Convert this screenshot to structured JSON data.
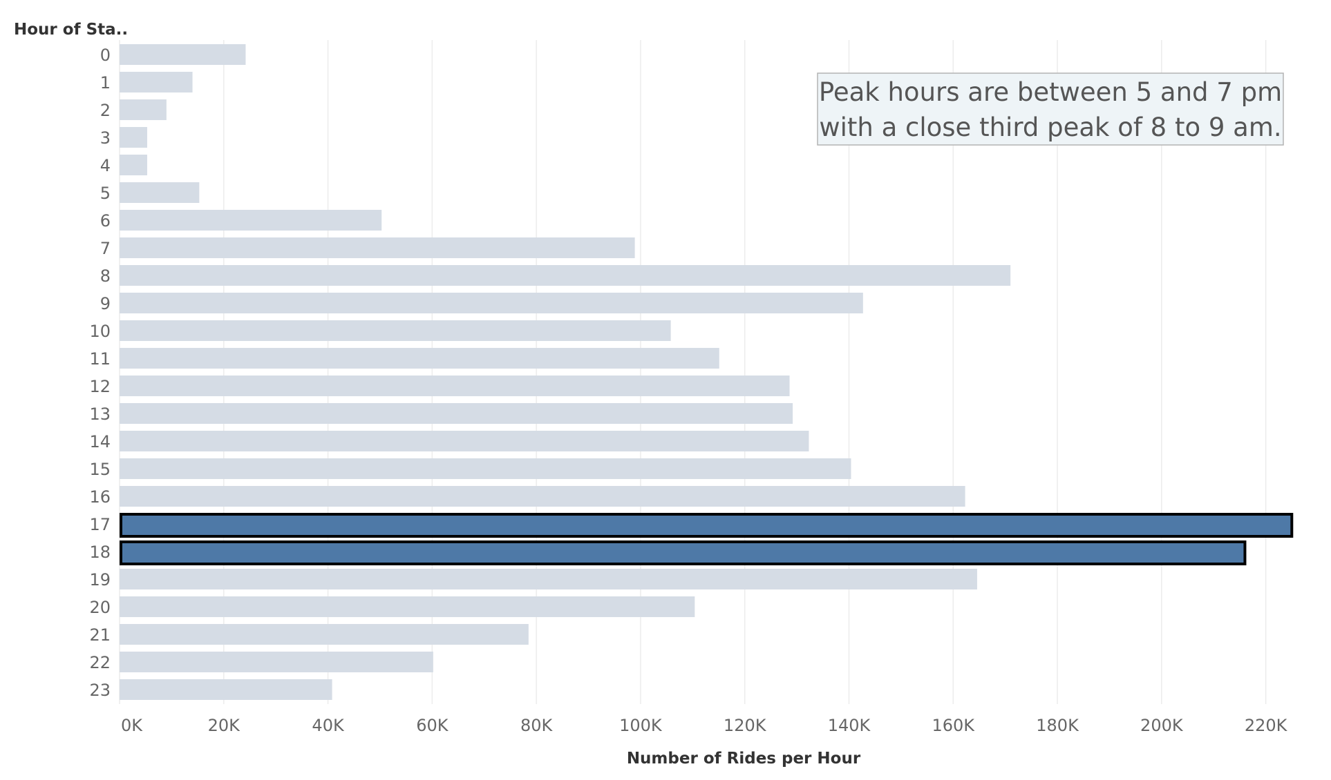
{
  "chart_data": {
    "type": "bar",
    "orientation": "horizontal",
    "row_header": "Hour of Sta..",
    "xlabel": "Number of Rides per Hour",
    "xlim": [
      0,
      230000
    ],
    "x_ticks": [
      0,
      20000,
      40000,
      60000,
      80000,
      100000,
      120000,
      140000,
      160000,
      180000,
      200000,
      220000
    ],
    "x_tick_labels": [
      "0K",
      "20K",
      "40K",
      "60K",
      "80K",
      "100K",
      "120K",
      "140K",
      "160K",
      "180K",
      "200K",
      "220K"
    ],
    "grid": {
      "vertical": true,
      "horizontal": false
    },
    "categories": [
      "0",
      "1",
      "2",
      "3",
      "4",
      "5",
      "6",
      "7",
      "8",
      "9",
      "10",
      "11",
      "12",
      "13",
      "14",
      "15",
      "16",
      "17",
      "18",
      "19",
      "20",
      "21",
      "22",
      "23"
    ],
    "values": [
      24200,
      14000,
      9000,
      5300,
      5300,
      15300,
      50300,
      98900,
      171000,
      142700,
      105800,
      115100,
      128600,
      129200,
      132300,
      140400,
      162300,
      225000,
      216000,
      164600,
      110400,
      78500,
      60200,
      40800
    ],
    "highlighted": [
      "17",
      "18"
    ],
    "annotation": {
      "lines": [
        "Peak hours are between 5 and 7 pm",
        "with a close third peak of 8 to 9 am."
      ]
    },
    "colors": {
      "bar": "#d5dce5",
      "highlight": "#4e79a7",
      "highlight_outline": "#000000",
      "grid": "#ececec",
      "tick_text": "#666666",
      "title_text": "#333333",
      "annotation_bg": "#eef4f7",
      "annotation_border": "#b3b3b3",
      "annotation_text": "#555555"
    }
  }
}
